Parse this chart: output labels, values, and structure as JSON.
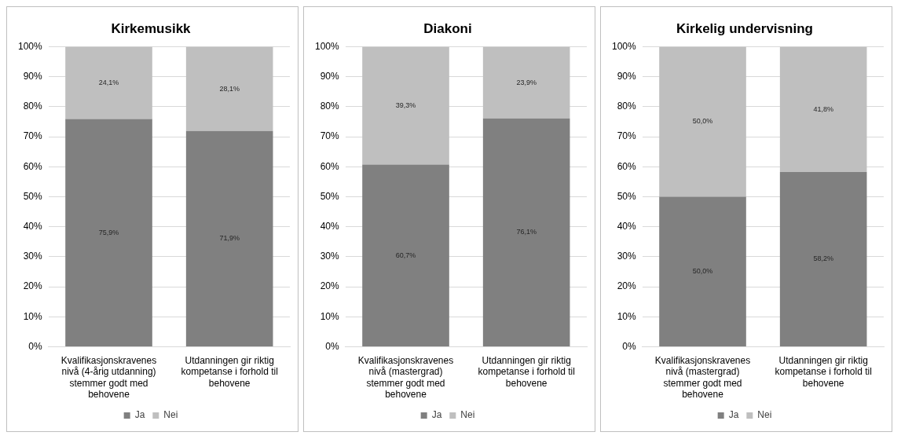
{
  "chart_data": [
    {
      "type": "bar",
      "title": "Kirkemusikk",
      "categories": [
        "Kvalifikasjonskravenes nivå (4-årig utdanning) stemmer godt med behovene",
        "Utdanningen gir riktig kompetanse i forhold til behovene"
      ],
      "stacked": true,
      "grid": "y",
      "legend": "bottom",
      "ylim": [
        0,
        100
      ],
      "yticks": [
        {
          "value": 0,
          "label": "0%"
        },
        {
          "value": 10,
          "label": "10%"
        },
        {
          "value": 20,
          "label": "20%"
        },
        {
          "value": 30,
          "label": "30%"
        },
        {
          "value": 40,
          "label": "40%"
        },
        {
          "value": 50,
          "label": "50%"
        },
        {
          "value": 60,
          "label": "60%"
        },
        {
          "value": 70,
          "label": "70%"
        },
        {
          "value": 80,
          "label": "80%"
        },
        {
          "value": 90,
          "label": "90%"
        },
        {
          "value": 100,
          "label": "100%"
        }
      ],
      "series": [
        {
          "name": "Ja",
          "color": "#808080",
          "values": [
            75.9,
            71.9
          ],
          "value_labels": [
            "75,9%",
            "71,9%"
          ]
        },
        {
          "name": "Nei",
          "color": "#bfbfbf",
          "values": [
            24.1,
            28.1
          ],
          "value_labels": [
            "24,1%",
            "28,1%"
          ]
        }
      ]
    },
    {
      "type": "bar",
      "title": "Diakoni",
      "categories": [
        "Kvalifikasjonskravenes nivå (mastergrad) stemmer godt med behovene",
        "Utdanningen gir riktig kompetanse i forhold til behovene"
      ],
      "stacked": true,
      "grid": "y",
      "legend": "bottom",
      "ylim": [
        0,
        100
      ],
      "yticks": [
        {
          "value": 0,
          "label": "0%"
        },
        {
          "value": 10,
          "label": "10%"
        },
        {
          "value": 20,
          "label": "20%"
        },
        {
          "value": 30,
          "label": "30%"
        },
        {
          "value": 40,
          "label": "40%"
        },
        {
          "value": 50,
          "label": "50%"
        },
        {
          "value": 60,
          "label": "60%"
        },
        {
          "value": 70,
          "label": "70%"
        },
        {
          "value": 80,
          "label": "80%"
        },
        {
          "value": 90,
          "label": "90%"
        },
        {
          "value": 100,
          "label": "100%"
        }
      ],
      "series": [
        {
          "name": "Ja",
          "color": "#808080",
          "values": [
            60.7,
            76.1
          ],
          "value_labels": [
            "60,7%",
            "76,1%"
          ]
        },
        {
          "name": "Nei",
          "color": "#bfbfbf",
          "values": [
            39.3,
            23.9
          ],
          "value_labels": [
            "39,3%",
            "23,9%"
          ]
        }
      ]
    },
    {
      "type": "bar",
      "title": "Kirkelig undervisning",
      "categories": [
        "Kvalifikasjonskravenes nivå (mastergrad) stemmer godt med behovene",
        "Utdanningen gir riktig kompetanse i forhold til behovene"
      ],
      "stacked": true,
      "grid": "y",
      "legend": "bottom",
      "ylim": [
        0,
        100
      ],
      "yticks": [
        {
          "value": 0,
          "label": "0%"
        },
        {
          "value": 10,
          "label": "10%"
        },
        {
          "value": 20,
          "label": "20%"
        },
        {
          "value": 30,
          "label": "30%"
        },
        {
          "value": 40,
          "label": "40%"
        },
        {
          "value": 50,
          "label": "50%"
        },
        {
          "value": 60,
          "label": "60%"
        },
        {
          "value": 70,
          "label": "70%"
        },
        {
          "value": 80,
          "label": "80%"
        },
        {
          "value": 90,
          "label": "90%"
        },
        {
          "value": 100,
          "label": "100%"
        }
      ],
      "series": [
        {
          "name": "Ja",
          "color": "#808080",
          "values": [
            50.0,
            58.2
          ],
          "value_labels": [
            "50,0%",
            "58,2%"
          ]
        },
        {
          "name": "Nei",
          "color": "#bfbfbf",
          "values": [
            50.0,
            41.8
          ],
          "value_labels": [
            "50,0%",
            "41,8%"
          ]
        }
      ]
    }
  ]
}
